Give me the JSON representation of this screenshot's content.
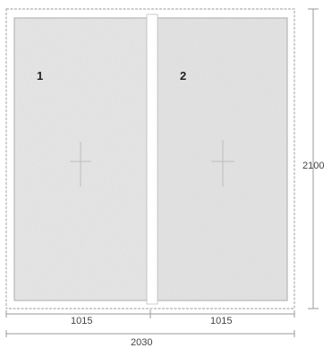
{
  "panels": [
    {
      "number": "1",
      "width_mm": "1015"
    },
    {
      "number": "2",
      "width_mm": "1015"
    }
  ],
  "dimensions": {
    "total_width": "2030",
    "height": "2100"
  },
  "colors": {
    "panel_fill": "#e9e9e9",
    "frame": "#b0b0b0",
    "dimension_line": "#9a9a9a",
    "text": "#333333"
  }
}
